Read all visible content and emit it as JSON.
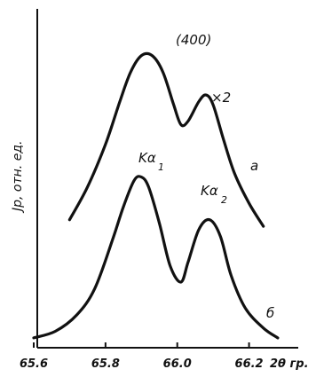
{
  "chart_data": {
    "type": "line",
    "title": "(400)",
    "xlabel": "2θ гр.",
    "ylabel": "Jp, отн. ед.",
    "xlim": [
      65.6,
      66.3
    ],
    "x_ticks": [
      "65.6",
      "65.8",
      "66.0",
      "66.2"
    ],
    "grid": false,
    "series": [
      {
        "name": "a",
        "scale_label": "×2",
        "points": [
          [
            65.7,
            0.39
          ],
          [
            65.75,
            0.49
          ],
          [
            65.8,
            0.62
          ],
          [
            65.84,
            0.75
          ],
          [
            65.87,
            0.84
          ],
          [
            65.9,
            0.89
          ],
          [
            65.93,
            0.89
          ],
          [
            65.96,
            0.84
          ],
          [
            65.99,
            0.74
          ],
          [
            66.01,
            0.68
          ],
          [
            66.03,
            0.69
          ],
          [
            66.06,
            0.75
          ],
          [
            66.08,
            0.77
          ],
          [
            66.1,
            0.74
          ],
          [
            66.13,
            0.63
          ],
          [
            66.16,
            0.53
          ],
          [
            66.2,
            0.44
          ],
          [
            66.24,
            0.37
          ]
        ]
      },
      {
        "name": "б",
        "peak_labels": [
          "Kα1",
          "Kα2"
        ],
        "points": [
          [
            65.6,
            0.03
          ],
          [
            65.66,
            0.05
          ],
          [
            65.72,
            0.1
          ],
          [
            65.77,
            0.18
          ],
          [
            65.82,
            0.33
          ],
          [
            65.85,
            0.43
          ],
          [
            65.88,
            0.51
          ],
          [
            65.9,
            0.52
          ],
          [
            65.92,
            0.49
          ],
          [
            65.95,
            0.38
          ],
          [
            65.98,
            0.25
          ],
          [
            66.01,
            0.2
          ],
          [
            66.03,
            0.26
          ],
          [
            66.06,
            0.36
          ],
          [
            66.09,
            0.39
          ],
          [
            66.12,
            0.34
          ],
          [
            66.15,
            0.22
          ],
          [
            66.19,
            0.12
          ],
          [
            66.24,
            0.06
          ],
          [
            66.28,
            0.03
          ]
        ]
      }
    ],
    "annotations": {
      "scale": "×2",
      "curve_a": "а",
      "curve_b": "б",
      "ka1": "Kα",
      "ka1_sub": "1",
      "ka2": "Kα",
      "ka2_sub": "2"
    }
  }
}
